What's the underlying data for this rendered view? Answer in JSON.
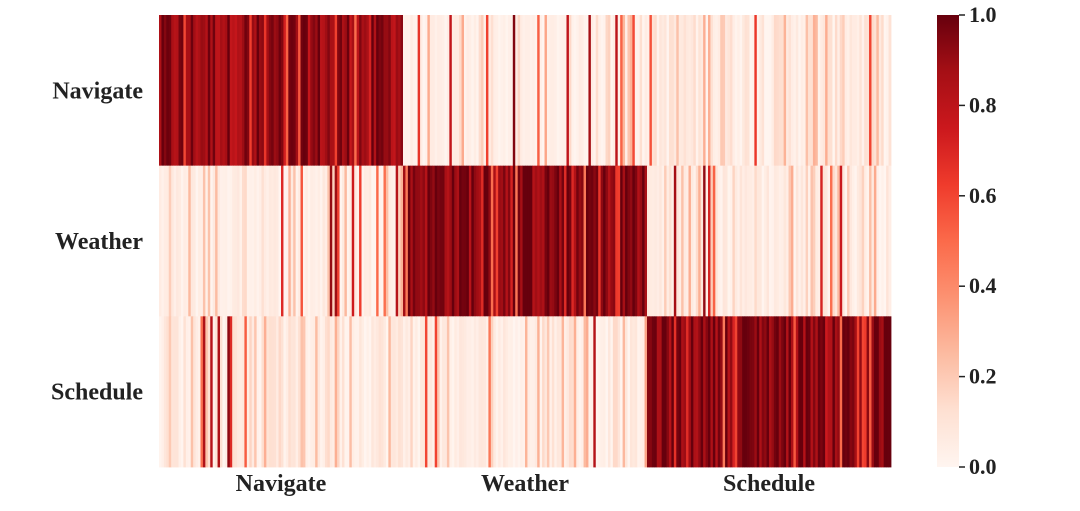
{
  "chart_data": {
    "type": "heatmap",
    "title": "",
    "xlabel": "",
    "ylabel": "",
    "row_labels": [
      "Navigate",
      "Weather",
      "Schedule"
    ],
    "col_group_labels": [
      "Navigate",
      "Weather",
      "Schedule"
    ],
    "columns_per_group": 100,
    "value_range": [
      0.0,
      1.0
    ],
    "colormap": "Reds",
    "colorbar": {
      "ticks": [
        0.0,
        0.2,
        0.4,
        0.6,
        0.8,
        1.0
      ],
      "tick_labels": [
        "0.0",
        "0.2",
        "0.4",
        "0.6",
        "0.8",
        "1.0"
      ],
      "placement": "right"
    },
    "group_mean_values": [
      [
        0.86,
        0.05,
        0.12
      ],
      [
        0.07,
        0.9,
        0.09
      ],
      [
        0.11,
        0.08,
        0.91
      ]
    ],
    "grid": false
  }
}
